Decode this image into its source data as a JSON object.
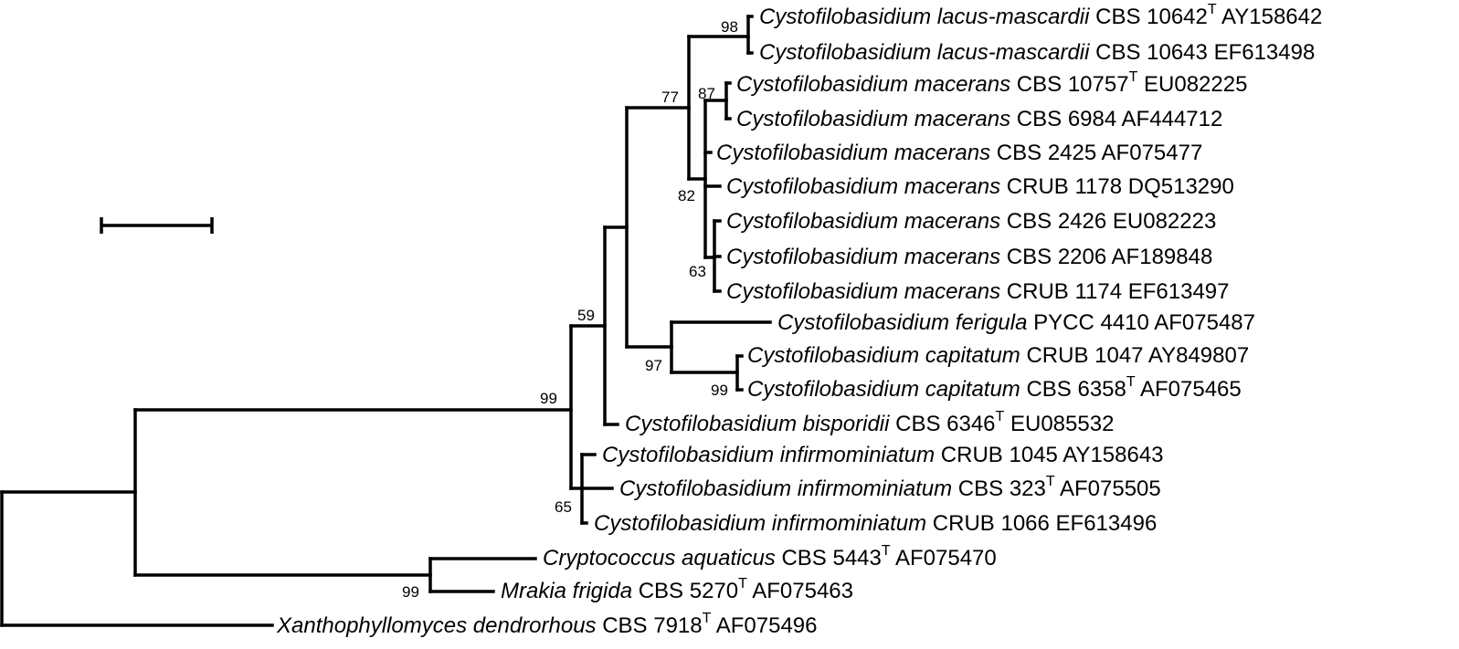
{
  "taxa": [
    {
      "id": "t1",
      "species": "Cystofilobasidium lacus-mascardii",
      "strain": "CBS 10642",
      "type": "T",
      "accession": "AY158642"
    },
    {
      "id": "t2",
      "species": "Cystofilobasidium lacus-mascardii",
      "strain": "CBS 10643",
      "type": "",
      "accession": "EF613498"
    },
    {
      "id": "t3",
      "species": "Cystofilobasidium macerans",
      "strain": "CBS 10757",
      "type": "T",
      "accession": "EU082225"
    },
    {
      "id": "t4",
      "species": "Cystofilobasidium macerans",
      "strain": "CBS 6984",
      "type": "",
      "accession": "AF444712"
    },
    {
      "id": "t5",
      "species": "Cystofilobasidium macerans",
      "strain": "CBS 2425",
      "type": "",
      "accession": "AF075477"
    },
    {
      "id": "t6",
      "species": "Cystofilobasidium macerans",
      "strain": "CRUB 1178",
      "type": "",
      "accession": "DQ513290"
    },
    {
      "id": "t7",
      "species": "Cystofilobasidium macerans",
      "strain": "CBS 2426",
      "type": "",
      "accession": "EU082223"
    },
    {
      "id": "t8",
      "species": "Cystofilobasidium macerans",
      "strain": "CBS 2206",
      "type": "",
      "accession": "AF189848"
    },
    {
      "id": "t9",
      "species": "Cystofilobasidium macerans",
      "strain": "CRUB 1174",
      "type": "",
      "accession": "EF613497"
    },
    {
      "id": "t10",
      "species": "Cystofilobasidium ferigula",
      "strain": "PYCC 4410",
      "type": "",
      "accession": "AF075487"
    },
    {
      "id": "t11",
      "species": "Cystofilobasidium capitatum",
      "strain": "CRUB 1047",
      "type": "",
      "accession": "AY849807"
    },
    {
      "id": "t12",
      "species": "Cystofilobasidium capitatum",
      "strain": "CBS 6358",
      "type": "T",
      "accession": "AF075465"
    },
    {
      "id": "t13",
      "species": "Cystofilobasidium bisporidii",
      "strain": "CBS 6346",
      "type": "T",
      "accession": "EU085532"
    },
    {
      "id": "t14",
      "species": "Cystofilobasidium infirmominiatum",
      "strain": "CRUB 1045",
      "type": "",
      "accession": "AY158643"
    },
    {
      "id": "t15",
      "species": "Cystofilobasidium infirmominiatum",
      "strain": "CBS 323",
      "type": "T",
      "accession": "AF075505"
    },
    {
      "id": "t16",
      "species": "Cystofilobasidium infirmominiatum",
      "strain": "CRUB 1066",
      "type": "",
      "accession": "EF613496"
    },
    {
      "id": "t17",
      "species": "Cryptococcus aquaticus",
      "strain": "CBS 5443",
      "type": "T",
      "accession": "AF075470"
    },
    {
      "id": "t18",
      "species": "Mrakia frigida",
      "strain": "CBS 5270",
      "type": "T",
      "accession": "AF075463"
    },
    {
      "id": "t19",
      "species": "Xanthophyllomyces dendrorhous",
      "strain": "CBS 7918",
      "type": "T",
      "accession": "AF075496"
    }
  ],
  "bootstrap": {
    "lacus_mascardii": "98",
    "macerans_crown": "77",
    "macerans_pair": "87",
    "macerans_group": "82",
    "macerans_trio": "63",
    "ingroup_core": "59",
    "ferigula_capitatum": "97",
    "capitatum": "99",
    "cystofilobasidium": "99",
    "infirmominiatum": "65",
    "aquaticus_frigida": "99"
  },
  "scale_bar": {
    "label": ""
  }
}
